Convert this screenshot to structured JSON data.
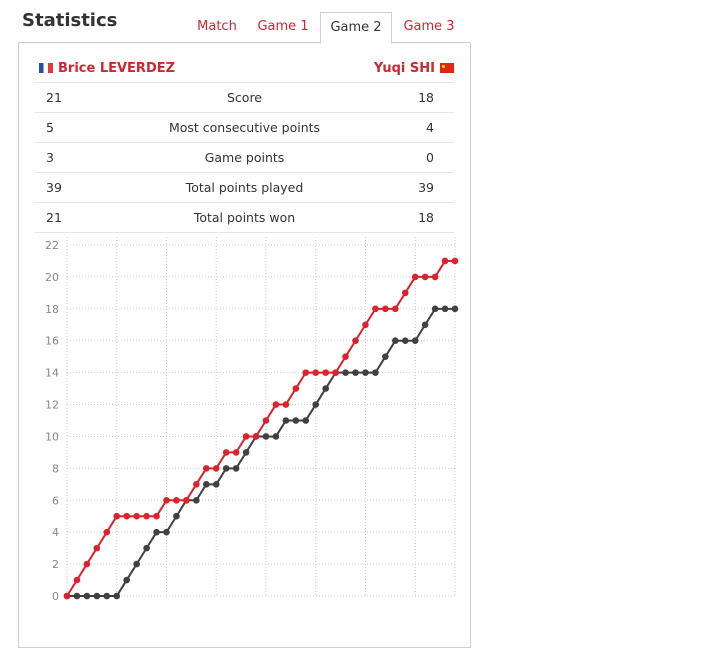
{
  "header": {
    "title": "Statistics"
  },
  "tabs": [
    {
      "label": "Match",
      "active": false
    },
    {
      "label": "Game 1",
      "active": false
    },
    {
      "label": "Game 2",
      "active": true
    },
    {
      "label": "Game 3",
      "active": false
    }
  ],
  "players": {
    "left": {
      "name": "Brice LEVERDEZ",
      "flag": "france-flag-icon"
    },
    "right": {
      "name": "Yuqi SHI",
      "flag": "china-flag-icon"
    }
  },
  "stats": [
    {
      "left": "21",
      "label": "Score",
      "right": "18"
    },
    {
      "left": "5",
      "label": "Most consecutive points",
      "right": "4"
    },
    {
      "left": "3",
      "label": "Game points",
      "right": "0"
    },
    {
      "left": "39",
      "label": "Total points played",
      "right": "39"
    },
    {
      "left": "21",
      "label": "Total points won",
      "right": "18"
    }
  ],
  "colors": {
    "accent": "#d0262d",
    "series_left": "#e0202a",
    "series_right": "#404040"
  },
  "chart_data": {
    "type": "line",
    "ylim": [
      0,
      22
    ],
    "yticks": [
      "0",
      "2",
      "4",
      "6",
      "8",
      "10",
      "12",
      "14",
      "16",
      "18",
      "20",
      "22"
    ],
    "grid": true,
    "x": [
      0,
      1,
      2,
      3,
      4,
      5,
      6,
      7,
      8,
      9,
      10,
      11,
      12,
      13,
      14,
      15,
      16,
      17,
      18,
      19,
      20,
      21,
      22,
      23,
      24,
      25,
      26,
      27,
      28,
      29,
      30,
      31,
      32,
      33,
      34,
      35,
      36,
      37,
      38,
      39
    ],
    "series": [
      {
        "color": "#e0202a",
        "values": [
          0,
          1,
          2,
          3,
          4,
          5,
          5,
          5,
          5,
          5,
          6,
          6,
          6,
          7,
          8,
          8,
          9,
          9,
          10,
          10,
          11,
          12,
          12,
          13,
          14,
          14,
          14,
          14,
          15,
          16,
          17,
          18,
          18,
          18,
          19,
          20,
          20,
          20,
          21,
          21
        ]
      },
      {
        "color": "#404040",
        "values": [
          0,
          0,
          0,
          0,
          0,
          0,
          1,
          2,
          3,
          4,
          4,
          5,
          6,
          6,
          7,
          7,
          8,
          8,
          9,
          10,
          10,
          10,
          11,
          11,
          11,
          12,
          13,
          14,
          14,
          14,
          14,
          14,
          15,
          16,
          16,
          16,
          17,
          18,
          18,
          18
        ]
      }
    ]
  }
}
